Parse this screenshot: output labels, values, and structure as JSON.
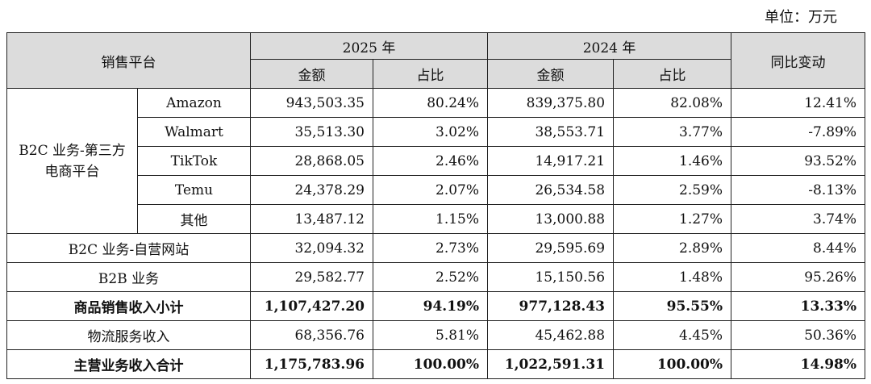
{
  "unit_label": "单位：万元",
  "header": {
    "platform": "销售平台",
    "year_2025": "2025 年",
    "year_2024": "2024 年",
    "amount": "金额",
    "ratio": "占比",
    "yoy": "同比变动"
  },
  "group_label": "B2C 业务-第三方电商平台",
  "third_party_rows": [
    {
      "name": "Amazon",
      "amt_2025": "943,503.35",
      "pct_2025": "80.24%",
      "amt_2024": "839,375.80",
      "pct_2024": "82.08%",
      "yoy": "12.41%"
    },
    {
      "name": "Walmart",
      "amt_2025": "35,513.30",
      "pct_2025": "3.02%",
      "amt_2024": "38,553.71",
      "pct_2024": "3.77%",
      "yoy": "-7.89%"
    },
    {
      "name": "TikTok",
      "amt_2025": "28,868.05",
      "pct_2025": "2.46%",
      "amt_2024": "14,917.21",
      "pct_2024": "1.46%",
      "yoy": "93.52%"
    },
    {
      "name": "Temu",
      "amt_2025": "24,378.29",
      "pct_2025": "2.07%",
      "amt_2024": "26,534.58",
      "pct_2024": "2.59%",
      "yoy": "-8.13%"
    },
    {
      "name": "其他",
      "amt_2025": "13,487.12",
      "pct_2025": "1.15%",
      "amt_2024": "13,000.88",
      "pct_2024": "1.27%",
      "yoy": "3.74%"
    }
  ],
  "other_rows": [
    {
      "name": "B2C 业务-自营网站",
      "amt_2025": "32,094.32",
      "pct_2025": "2.73%",
      "amt_2024": "29,595.69",
      "pct_2024": "2.89%",
      "yoy": "8.44%"
    },
    {
      "name": "B2B 业务",
      "amt_2025": "29,582.77",
      "pct_2025": "2.52%",
      "amt_2024": "15,150.56",
      "pct_2024": "1.48%",
      "yoy": "95.26%"
    }
  ],
  "subtotal": {
    "name": "商品销售收入小计",
    "amt_2025": "1,107,427.20",
    "pct_2025": "94.19%",
    "amt_2024": "977,128.43",
    "pct_2024": "95.55%",
    "yoy": "13.33%"
  },
  "logistics": {
    "name": "物流服务收入",
    "amt_2025": "68,356.76",
    "pct_2025": "5.81%",
    "amt_2024": "45,462.88",
    "pct_2024": "4.45%",
    "yoy": "50.36%"
  },
  "total": {
    "name": "主营业务收入合计",
    "amt_2025": "1,175,783.96",
    "pct_2025": "100.00%",
    "amt_2024": "1,022,591.31",
    "pct_2024": "100.00%",
    "yoy": "14.98%"
  }
}
